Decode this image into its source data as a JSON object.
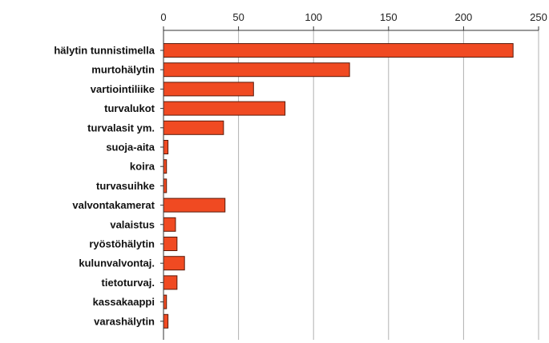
{
  "chart_data": {
    "type": "bar",
    "orientation": "horizontal",
    "categories": [
      "hälytin tunnistimella",
      "murtohälytin",
      "vartiointiliike",
      "turvalukot",
      "turvalasit ym.",
      "suoja-aita",
      "koira",
      "turvasuihke",
      "valvontakamerat",
      "valaistus",
      "ryöstöhälytin",
      "kulunvalvontaj.",
      "tietoturvaj.",
      "kassakaappi",
      "varashälytin"
    ],
    "values": [
      233,
      124,
      60,
      81,
      40,
      3,
      2,
      2,
      41,
      8,
      9,
      14,
      9,
      2,
      3
    ],
    "xlim": [
      0,
      250
    ],
    "x_ticks": [
      0,
      50,
      100,
      150,
      200,
      250
    ],
    "x_tick_labels": [
      "0",
      "50",
      "100",
      "150",
      "200",
      "250"
    ],
    "x_axis_position": "top",
    "grid": true,
    "legend": "none",
    "title": "",
    "xlabel": "",
    "ylabel": "",
    "colors": {
      "bar_fill": "#f04a22",
      "bar_stroke": "#5a1a0a",
      "grid": "#b0b0b0",
      "axis": "#333333"
    }
  }
}
